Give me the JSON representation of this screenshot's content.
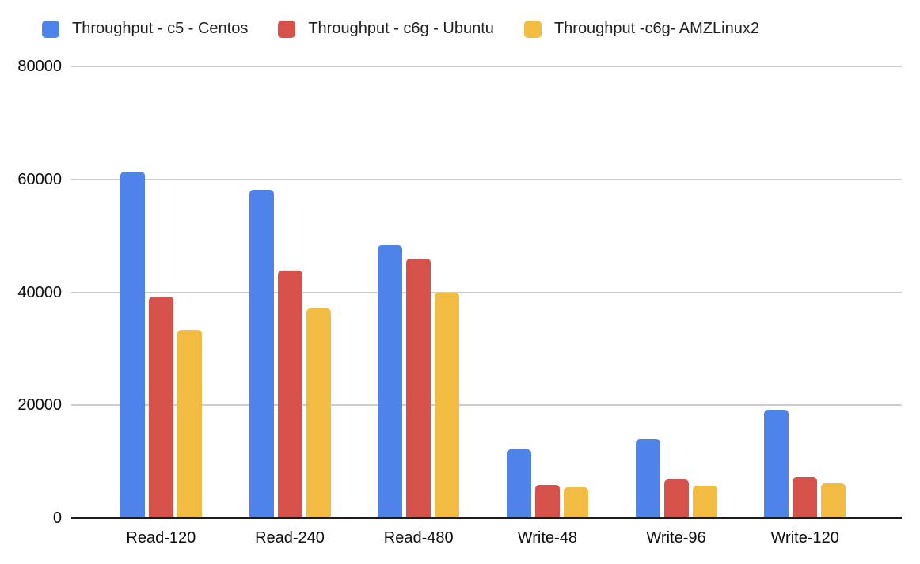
{
  "chart_data": {
    "type": "bar",
    "title": "",
    "xlabel": "",
    "ylabel": "",
    "categories": [
      "Read-120",
      "Read-240",
      "Read-480",
      "Write-48",
      "Write-96",
      "Write-120"
    ],
    "series": [
      {
        "name": "Throughput - c5 - Centos",
        "color": "#4e83ea",
        "values": [
          61400,
          58100,
          48400,
          12200,
          14000,
          19200
        ]
      },
      {
        "name": "Throughput - c6g - Ubuntu",
        "color": "#d5514a",
        "values": [
          39300,
          43800,
          45900,
          5900,
          6800,
          7300
        ]
      },
      {
        "name": "Throughput -c6g- AMZLinux2",
        "color": "#f2bb41",
        "values": [
          33300,
          37100,
          40000,
          5500,
          5800,
          6200
        ]
      }
    ],
    "ylim": [
      0,
      80000
    ],
    "yticks": [
      0,
      20000,
      40000,
      60000,
      80000
    ],
    "grid": true,
    "gridline_color": "#cdcdcd",
    "axis_line_color": "#1d1d1d",
    "legend_position": "top"
  }
}
